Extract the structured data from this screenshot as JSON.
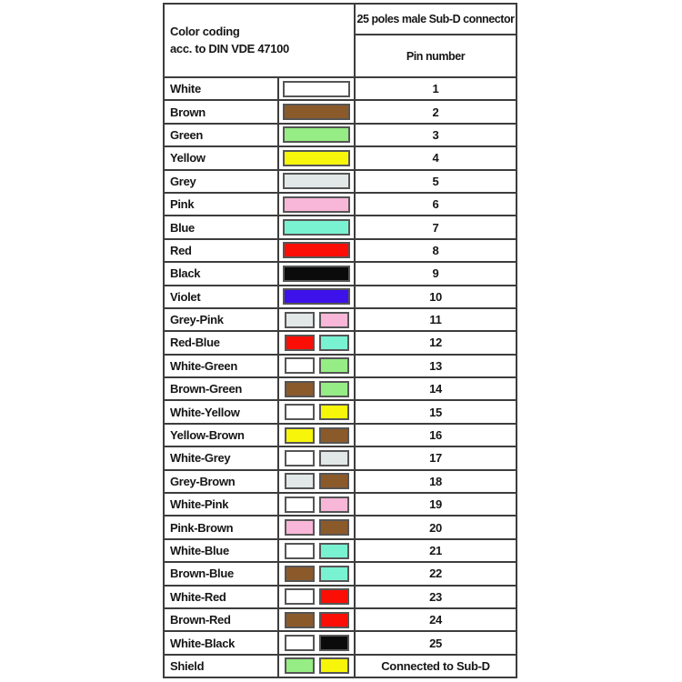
{
  "table": {
    "header": {
      "left_line1": "Color coding",
      "left_line2": "acc. to DIN VDE 47100",
      "right_top": "25 poles male Sub-D connector",
      "right_bottom": "Pin number"
    },
    "palette": {
      "white": "#FFFFFF",
      "brown": "#8B5A2B",
      "green": "#96ED85",
      "yellow": "#F7F50A",
      "grey": "#E2E7E7",
      "pink": "#F8B7D8",
      "blue": "#79F2D2",
      "red": "#FB0E06",
      "black": "#0B0B0B",
      "violet": "#3D11E9"
    },
    "border_color": "#3d3d3d",
    "rows": [
      {
        "label": "White",
        "colors": [
          "white"
        ],
        "pin": "1"
      },
      {
        "label": "Brown",
        "colors": [
          "brown"
        ],
        "pin": "2"
      },
      {
        "label": "Green",
        "colors": [
          "green"
        ],
        "pin": "3"
      },
      {
        "label": "Yellow",
        "colors": [
          "yellow"
        ],
        "pin": "4"
      },
      {
        "label": "Grey",
        "colors": [
          "grey"
        ],
        "pin": "5"
      },
      {
        "label": "Pink",
        "colors": [
          "pink"
        ],
        "pin": "6"
      },
      {
        "label": "Blue",
        "colors": [
          "blue"
        ],
        "pin": "7"
      },
      {
        "label": "Red",
        "colors": [
          "red"
        ],
        "pin": "8"
      },
      {
        "label": "Black",
        "colors": [
          "black"
        ],
        "pin": "9"
      },
      {
        "label": "Violet",
        "colors": [
          "violet"
        ],
        "pin": "10"
      },
      {
        "label": "Grey-Pink",
        "colors": [
          "grey",
          "pink"
        ],
        "pin": "11"
      },
      {
        "label": "Red-Blue",
        "colors": [
          "red",
          "blue"
        ],
        "pin": "12"
      },
      {
        "label": "White-Green",
        "colors": [
          "white",
          "green"
        ],
        "pin": "13"
      },
      {
        "label": "Brown-Green",
        "colors": [
          "brown",
          "green"
        ],
        "pin": "14"
      },
      {
        "label": "White-Yellow",
        "colors": [
          "white",
          "yellow"
        ],
        "pin": "15"
      },
      {
        "label": "Yellow-Brown",
        "colors": [
          "yellow",
          "brown"
        ],
        "pin": "16"
      },
      {
        "label": "White-Grey",
        "colors": [
          "white",
          "grey"
        ],
        "pin": "17"
      },
      {
        "label": "Grey-Brown",
        "colors": [
          "grey",
          "brown"
        ],
        "pin": "18"
      },
      {
        "label": "White-Pink",
        "colors": [
          "white",
          "pink"
        ],
        "pin": "19"
      },
      {
        "label": "Pink-Brown",
        "colors": [
          "pink",
          "brown"
        ],
        "pin": "20"
      },
      {
        "label": "White-Blue",
        "colors": [
          "white",
          "blue"
        ],
        "pin": "21"
      },
      {
        "label": "Brown-Blue",
        "colors": [
          "brown",
          "blue"
        ],
        "pin": "22"
      },
      {
        "label": "White-Red",
        "colors": [
          "white",
          "red"
        ],
        "pin": "23"
      },
      {
        "label": "Brown-Red",
        "colors": [
          "brown",
          "red"
        ],
        "pin": "24"
      },
      {
        "label": "White-Black",
        "colors": [
          "white",
          "black"
        ],
        "pin": "25"
      },
      {
        "label": "Shield",
        "colors": [
          "green",
          "yellow"
        ],
        "pin": "Connected to Sub-D"
      }
    ]
  }
}
